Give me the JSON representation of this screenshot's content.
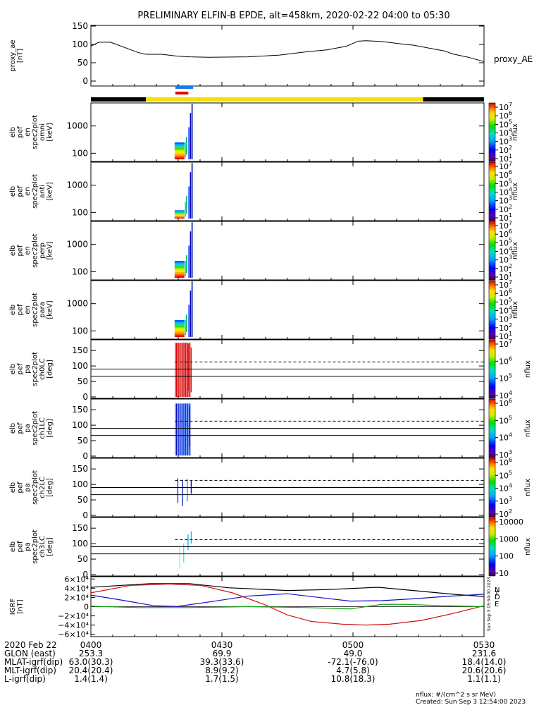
{
  "title": "PRELIMINARY ELFIN-B EPDE, alt=458km, 2020-02-22 04:00 to 05:30",
  "chart_data": [
    {
      "type": "line",
      "panel": "proxy_ae",
      "ylabel": [
        "proxy_ae",
        "[nT]"
      ],
      "legend": "proxy_AE",
      "ylim": [
        0,
        150
      ],
      "y_ticks": [
        "150",
        "100",
        "50",
        "0"
      ],
      "x": [
        0,
        2,
        5,
        12,
        14,
        18,
        22,
        25,
        30,
        40,
        48,
        55,
        60,
        65,
        68,
        70,
        74,
        80,
        82,
        86,
        90,
        92,
        96,
        100
      ],
      "y": [
        95,
        106,
        106,
        78,
        73,
        73,
        68,
        66,
        65,
        66,
        71,
        80,
        85,
        95,
        109,
        110,
        108,
        100,
        98,
        90,
        82,
        74,
        65,
        53
      ]
    },
    {
      "type": "area",
      "panel": "science_zone",
      "colors": [
        "#000000",
        "#f6e000",
        "#000000"
      ],
      "segments_pct": [
        [
          0,
          14,
          "black"
        ],
        [
          14,
          84.5,
          "yellow"
        ],
        [
          84.5,
          100,
          "black"
        ]
      ],
      "markers": [
        {
          "color": "#1e78e6",
          "x": [
            21.5,
            26
          ]
        },
        {
          "color": "#e60000",
          "x": [
            21.5,
            24.8
          ]
        }
      ]
    },
    {
      "type": "heatmap",
      "panel": "omni",
      "ylabel": [
        "elb",
        "pef",
        "en",
        "spec2plot",
        "omni",
        "[keV]"
      ],
      "y_scale": "log",
      "y_ticks": [
        "1000",
        "100"
      ],
      "colorbar": {
        "label": "nflux",
        "ticks": [
          "10^7",
          "10^6",
          "10^5",
          "10^4",
          "10^3",
          "10^2",
          "10^1"
        ]
      }
    },
    {
      "type": "heatmap",
      "panel": "anti",
      "ylabel": [
        "elb",
        "pef",
        "en",
        "spec2plot",
        "anti",
        "[keV]"
      ],
      "y_scale": "log",
      "y_ticks": [
        "1000",
        "100"
      ],
      "colorbar": {
        "label": "nflux",
        "ticks": [
          "10^7",
          "10^6",
          "10^5",
          "10^4",
          "10^3",
          "10^2",
          "10^1"
        ]
      }
    },
    {
      "type": "heatmap",
      "panel": "perp",
      "ylabel": [
        "elb",
        "pef",
        "en",
        "spec2plot",
        "perp",
        "[keV]"
      ],
      "y_scale": "log",
      "y_ticks": [
        "1000",
        "100"
      ],
      "colorbar": {
        "label": "nflux",
        "ticks": [
          "10^7",
          "10^6",
          "10^5",
          "10^4",
          "10^3",
          "10^2",
          "10^1"
        ]
      }
    },
    {
      "type": "heatmap",
      "panel": "para",
      "ylabel": [
        "elb",
        "pef",
        "en",
        "spec2plot",
        "para",
        "[keV]"
      ],
      "y_scale": "log",
      "y_ticks": [
        "1000",
        "100"
      ],
      "colorbar": {
        "label": "nflux",
        "ticks": [
          "10^7",
          "10^6",
          "10^5",
          "10^4",
          "10^3",
          "10^2",
          "10^1"
        ]
      }
    },
    {
      "type": "heatmap",
      "panel": "ch0LC",
      "ylabel": [
        "elb",
        "pef",
        "pa",
        "spec2plot",
        "ch0LC",
        "[deg]"
      ],
      "ylim": [
        0,
        180
      ],
      "y_ticks": [
        "150",
        "100",
        "50",
        "0"
      ],
      "reference_lines": [
        90,
        67
      ],
      "dashed_line": 113,
      "colorbar": {
        "label": "nflux",
        "ticks": [
          "10^7",
          "10^6",
          "10^5",
          "10^4"
        ]
      }
    },
    {
      "type": "heatmap",
      "panel": "ch1LC",
      "ylabel": [
        "elb",
        "pef",
        "pa",
        "spec2plot",
        "ch1LC",
        "[deg]"
      ],
      "ylim": [
        0,
        180
      ],
      "y_ticks": [
        "150",
        "100",
        "50",
        "0"
      ],
      "reference_lines": [
        90,
        67
      ],
      "dashed_line": 113,
      "colorbar": {
        "label": "nflux",
        "ticks": [
          "10^6",
          "10^5",
          "10^4",
          "10^3"
        ]
      }
    },
    {
      "type": "heatmap",
      "panel": "ch2LC",
      "ylabel": [
        "elb",
        "pef",
        "pa",
        "spec2plot",
        "ch2LC",
        "[deg]"
      ],
      "ylim": [
        0,
        180
      ],
      "y_ticks": [
        "150",
        "100",
        "50",
        "0"
      ],
      "reference_lines": [
        90,
        67
      ],
      "dashed_line": 113,
      "colorbar": {
        "label": "nflux",
        "ticks": [
          "10^6",
          "10^5",
          "10^4",
          "10^3",
          "10^2"
        ]
      }
    },
    {
      "type": "heatmap",
      "panel": "ch3LC",
      "ylabel": [
        "elb",
        "pef",
        "pa",
        "spec2plot",
        "ch3LC",
        "[deg]"
      ],
      "ylim": [
        0,
        180
      ],
      "y_ticks": [
        "150",
        "100",
        "50",
        "0"
      ],
      "reference_lines": [
        90,
        67
      ],
      "dashed_line": 113,
      "colorbar": {
        "label": "nflux",
        "ticks": [
          "10000",
          "1000",
          "100",
          "10"
        ]
      }
    },
    {
      "type": "line",
      "panel": "IGRF",
      "ylabel": [
        "IGRF",
        "[nT]"
      ],
      "ylim": [
        -65000,
        65000
      ],
      "y_ticks": [
        "6×10⁴",
        "4×10⁴",
        "2×10⁴",
        "0",
        "−2×10⁴",
        "−4×10⁴",
        "−6×10⁴"
      ],
      "legend": [
        "N",
        "E",
        "D",
        "T"
      ],
      "series": [
        {
          "name": "T",
          "color": "#000000",
          "x": [
            0,
            15,
            25,
            35,
            50,
            60,
            73,
            82,
            92,
            100
          ],
          "y": [
            42000,
            50000,
            50000,
            41000,
            35000,
            37000,
            42000,
            35000,
            27000,
            22000
          ]
        },
        {
          "name": "N",
          "color": "#1010c8",
          "x": [
            0,
            8,
            16,
            22,
            30,
            40,
            50,
            58,
            66,
            74,
            82,
            90,
            100
          ],
          "y": [
            25000,
            14000,
            2000,
            500,
            10000,
            23000,
            28000,
            20000,
            12000,
            13000,
            17000,
            22000,
            27000
          ]
        },
        {
          "name": "D",
          "color": "#d01010",
          "x": [
            0,
            10,
            20,
            28,
            36,
            44,
            50,
            56,
            64,
            70,
            76,
            84,
            92,
            100
          ],
          "y": [
            30000,
            46000,
            49000,
            46000,
            30000,
            5000,
            -18000,
            -32000,
            -38000,
            -40000,
            -38000,
            -30000,
            -15000,
            2000
          ]
        },
        {
          "name": "E",
          "color": "#10a010",
          "x": [
            0,
            12,
            25,
            40,
            55,
            66,
            70,
            74,
            80,
            90,
            100
          ],
          "y": [
            1000,
            -2000,
            -2000,
            0,
            -2000,
            -5000,
            0,
            5000,
            5000,
            2000,
            0
          ]
        }
      ]
    }
  ],
  "axis": {
    "time_ticks": [
      "0400",
      "0430",
      "0500",
      "0530"
    ],
    "rows": [
      {
        "label": "2020 Feb 22",
        "values": [
          "0400",
          "0430",
          "0500",
          "0530"
        ]
      },
      {
        "label": "GLON (east)",
        "values": [
          "253.3",
          "69.9",
          "49.0",
          "231.6"
        ]
      },
      {
        "label": "MLAT-igrf(dip)",
        "values": [
          "63.0(30.3)",
          "39.3(33.6)",
          "-72.1(-76.0)",
          "18.4(14.0)"
        ]
      },
      {
        "label": "MLT-igrf(dip)",
        "values": [
          "20.4(20.4)",
          "8.9(9.2)",
          "4.7(5.8)",
          "20.6(20.6)"
        ]
      },
      {
        "label": "L-igrf(dip)",
        "values": [
          "1.4(1.4)",
          "1.7(1.5)",
          "10.8(18.3)",
          "1.1(1.1)"
        ]
      }
    ]
  },
  "footer": {
    "units": "nflux: #/(cm^2 s sr MeV)",
    "created": "Created: Sun Sep  3 12:54:00 2023",
    "side_stamp": "Sun Sep  3 05:54:00 2023"
  }
}
